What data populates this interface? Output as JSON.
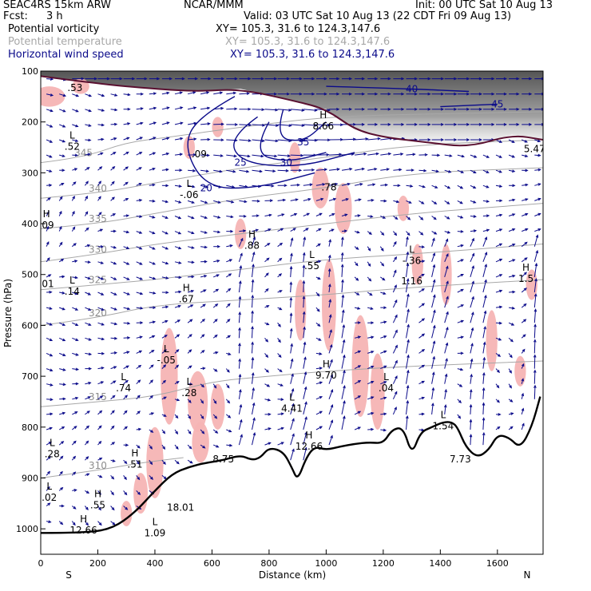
{
  "header": {
    "model": "SEAC4RS 15km ARW",
    "org": "NCAR/MMM",
    "init": "Init: 00 UTC Sat 10 Aug 13",
    "fcst_label": "Fcst:",
    "fcst_value": "3 h",
    "valid": "Valid: 03 UTC Sat 10 Aug 13 (22 CDT Fri 09 Aug 13)",
    "fields": [
      {
        "name": "Potential vorticity",
        "xy": "XY= 105.3, 31.6 to 124.3,147.6",
        "color": "#000000"
      },
      {
        "name": "Potential temperature",
        "xy": "XY= 105.3, 31.6 to 124.3,147.6",
        "color": "#a8a8a8"
      },
      {
        "name": "Horizontal wind speed",
        "xy": "XY= 105.3, 31.6 to 124.3,147.6",
        "color": "#0a0a8a"
      }
    ]
  },
  "chart_data": {
    "type": "cross-section",
    "xlabel": "Distance (km)",
    "ylabel": "Pressure (hPa)",
    "xlim": [
      0,
      1760
    ],
    "ylim": [
      1050,
      100
    ],
    "x_ticks": [
      0,
      200,
      400,
      600,
      800,
      1000,
      1200,
      1400,
      1600
    ],
    "y_ticks": [
      100,
      200,
      300,
      400,
      500,
      600,
      700,
      800,
      900,
      1000
    ],
    "left_end_label": "S",
    "right_end_label": "N",
    "colors": {
      "pv_shading": "#f6b4b4",
      "wind_contour": "#0a0a8a",
      "theta_contour": "#a8a8a8",
      "terrain": "#000000",
      "dynamic_tropopause": "#5a1030"
    },
    "terrain": [
      [
        0,
        1008
      ],
      [
        150,
        1008
      ],
      [
        250,
        1000
      ],
      [
        330,
        968
      ],
      [
        400,
        925
      ],
      [
        460,
        892
      ],
      [
        520,
        878
      ],
      [
        580,
        870
      ],
      [
        640,
        865
      ],
      [
        700,
        855
      ],
      [
        740,
        865
      ],
      [
        770,
        860
      ],
      [
        800,
        840
      ],
      [
        850,
        848
      ],
      [
        880,
        880
      ],
      [
        900,
        905
      ],
      [
        930,
        860
      ],
      [
        960,
        838
      ],
      [
        1000,
        845
      ],
      [
        1050,
        838
      ],
      [
        1100,
        833
      ],
      [
        1150,
        830
      ],
      [
        1200,
        832
      ],
      [
        1230,
        805
      ],
      [
        1270,
        800
      ],
      [
        1300,
        855
      ],
      [
        1330,
        810
      ],
      [
        1370,
        800
      ],
      [
        1410,
        790
      ],
      [
        1440,
        790
      ],
      [
        1460,
        800
      ],
      [
        1490,
        840
      ],
      [
        1530,
        860
      ],
      [
        1570,
        845
      ],
      [
        1600,
        815
      ],
      [
        1640,
        820
      ],
      [
        1680,
        842
      ],
      [
        1720,
        800
      ],
      [
        1750,
        740
      ]
    ],
    "theta_contours": [
      {
        "label": "345",
        "points": [
          [
            0,
            280
          ],
          [
            150,
            270
          ],
          [
            300,
            240
          ],
          [
            450,
            230
          ],
          [
            700,
            210
          ],
          [
            1000,
            190
          ],
          [
            1300,
            185
          ],
          [
            1760,
            180
          ]
        ]
      },
      {
        "label": "340",
        "points": [
          [
            0,
            350
          ],
          [
            200,
            340
          ],
          [
            400,
            320
          ],
          [
            700,
            290
          ],
          [
            1000,
            270
          ],
          [
            1300,
            245
          ],
          [
            1760,
            235
          ]
        ]
      },
      {
        "label": "335",
        "points": [
          [
            0,
            410
          ],
          [
            200,
            400
          ],
          [
            400,
            380
          ],
          [
            700,
            350
          ],
          [
            1000,
            330
          ],
          [
            1300,
            300
          ],
          [
            1760,
            290
          ]
        ]
      },
      {
        "label": "330",
        "points": [
          [
            0,
            475
          ],
          [
            200,
            460
          ],
          [
            400,
            440
          ],
          [
            700,
            420
          ],
          [
            1000,
            400
          ],
          [
            1300,
            380
          ],
          [
            1760,
            360
          ]
        ]
      },
      {
        "label": "325",
        "points": [
          [
            0,
            530
          ],
          [
            200,
            520
          ],
          [
            400,
            510
          ],
          [
            700,
            490
          ],
          [
            1000,
            470
          ],
          [
            1300,
            460
          ],
          [
            1760,
            440
          ]
        ]
      },
      {
        "label": "320",
        "points": [
          [
            0,
            600
          ],
          [
            200,
            585
          ],
          [
            400,
            560
          ],
          [
            700,
            550
          ],
          [
            1000,
            540
          ],
          [
            1300,
            525
          ],
          [
            1760,
            510
          ]
        ]
      },
      {
        "label": "315",
        "points": [
          [
            0,
            760
          ],
          [
            200,
            750
          ],
          [
            400,
            740
          ],
          [
            600,
            710
          ],
          [
            800,
            700
          ],
          [
            1000,
            690
          ],
          [
            1300,
            680
          ],
          [
            1760,
            670
          ]
        ]
      },
      {
        "label": "310",
        "points": [
          [
            0,
            900
          ],
          [
            200,
            885
          ],
          [
            350,
            870
          ],
          [
            500,
            860
          ]
        ]
      }
    ],
    "wind_contours": [
      {
        "label": "20",
        "points": [
          [
            680,
            150
          ],
          [
            550,
            190
          ],
          [
            500,
            250
          ],
          [
            580,
            330
          ],
          [
            760,
            330
          ],
          [
            960,
            300
          ]
        ]
      },
      {
        "label": "25",
        "points": [
          [
            760,
            190
          ],
          [
            660,
            230
          ],
          [
            700,
            280
          ],
          [
            900,
            290
          ],
          [
            1100,
            260
          ]
        ]
      },
      {
        "label": "30",
        "points": [
          [
            800,
            200
          ],
          [
            740,
            260
          ],
          [
            860,
            280
          ],
          [
            1000,
            260
          ]
        ]
      },
      {
        "label": "35",
        "points": [
          [
            850,
            175
          ],
          [
            820,
            230
          ],
          [
            920,
            240
          ],
          [
            1000,
            200
          ]
        ]
      },
      {
        "label": "40",
        "points": [
          [
            1000,
            130
          ],
          [
            1300,
            135
          ],
          [
            1500,
            140
          ]
        ]
      },
      {
        "label": "45",
        "points": [
          [
            1400,
            170
          ],
          [
            1600,
            165
          ]
        ]
      }
    ],
    "dynamic_tropopause": [
      [
        0,
        110
      ],
      [
        200,
        125
      ],
      [
        400,
        135
      ],
      [
        550,
        140
      ],
      [
        700,
        135
      ],
      [
        900,
        160
      ],
      [
        1000,
        175
      ],
      [
        1100,
        215
      ],
      [
        1200,
        230
      ],
      [
        1350,
        240
      ],
      [
        1500,
        250
      ],
      [
        1650,
        225
      ],
      [
        1760,
        235
      ]
    ],
    "pv_regions": [
      [
        30,
        150,
        110,
        40
      ],
      [
        140,
        130,
        60,
        30
      ],
      [
        520,
        250,
        40,
        45
      ],
      [
        620,
        210,
        40,
        40
      ],
      [
        890,
        270,
        40,
        60
      ],
      [
        980,
        330,
        60,
        80
      ],
      [
        1060,
        370,
        60,
        100
      ],
      [
        1270,
        370,
        40,
        50
      ],
      [
        700,
        420,
        40,
        60
      ],
      [
        1420,
        500,
        40,
        120
      ],
      [
        1320,
        480,
        40,
        80
      ],
      [
        910,
        570,
        40,
        120
      ],
      [
        1010,
        560,
        50,
        180
      ],
      [
        1120,
        680,
        60,
        200
      ],
      [
        1180,
        730,
        50,
        150
      ],
      [
        1580,
        630,
        40,
        120
      ],
      [
        1720,
        520,
        40,
        60
      ],
      [
        1680,
        690,
        40,
        60
      ],
      [
        450,
        700,
        60,
        190
      ],
      [
        550,
        750,
        70,
        120
      ],
      [
        620,
        760,
        50,
        90
      ],
      [
        560,
        830,
        60,
        80
      ],
      [
        400,
        870,
        60,
        140
      ],
      [
        350,
        930,
        50,
        80
      ],
      [
        300,
        970,
        40,
        50
      ]
    ],
    "pv_extrema": [
      {
        "kind": "",
        "value": ".53",
        "x": 120,
        "y": 130
      },
      {
        "kind": "L",
        "value": ".52",
        "x": 110,
        "y": 245
      },
      {
        "kind": "",
        "value": ".09",
        "x": 555,
        "y": 260
      },
      {
        "kind": "L",
        "value": "-.06",
        "x": 520,
        "y": 340
      },
      {
        "kind": "H",
        "value": ".09",
        "x": 20,
        "y": 400
      },
      {
        "kind": "H",
        "value": ".88",
        "x": 740,
        "y": 440
      },
      {
        "kind": "L",
        "value": ".55",
        "x": 950,
        "y": 480
      },
      {
        "kind": "",
        "value": ".01",
        "x": 20,
        "y": 515
      },
      {
        "kind": "L",
        "value": ".14",
        "x": 110,
        "y": 530
      },
      {
        "kind": "H",
        "value": ".67",
        "x": 510,
        "y": 545
      },
      {
        "kind": "L",
        "value": "-.36",
        "x": 1300,
        "y": 470
      },
      {
        "kind": "",
        "value": "1.16",
        "x": 1300,
        "y": 510
      },
      {
        "kind": "H",
        "value": "1.5",
        "x": 1700,
        "y": 505
      },
      {
        "kind": "L",
        "value": "-.05",
        "x": 440,
        "y": 665
      },
      {
        "kind": "L",
        "value": ".74",
        "x": 290,
        "y": 720
      },
      {
        "kind": "L",
        "value": ".28",
        "x": 520,
        "y": 730
      },
      {
        "kind": "H",
        "value": "9.70",
        "x": 1000,
        "y": 695
      },
      {
        "kind": "L",
        "value": ".04",
        "x": 1210,
        "y": 720
      },
      {
        "kind": "L",
        "value": "4.41",
        "x": 880,
        "y": 760
      },
      {
        "kind": "H",
        "value": "12.66",
        "x": 940,
        "y": 835
      },
      {
        "kind": "L",
        "value": ".28",
        "x": 40,
        "y": 850
      },
      {
        "kind": "H",
        "value": ".51",
        "x": 330,
        "y": 870
      },
      {
        "kind": "",
        "value": "8.75",
        "x": 640,
        "y": 860
      },
      {
        "kind": "L",
        "value": ".02",
        "x": 30,
        "y": 935
      },
      {
        "kind": "H",
        "value": ".55",
        "x": 200,
        "y": 950
      },
      {
        "kind": "",
        "value": "18.01",
        "x": 490,
        "y": 955
      },
      {
        "kind": "H",
        "value": "12.66",
        "x": 150,
        "y": 1000
      },
      {
        "kind": "L",
        "value": "1.09",
        "x": 400,
        "y": 1005
      },
      {
        "kind": "L",
        "value": "1.54",
        "x": 1410,
        "y": 795
      },
      {
        "kind": "",
        "value": "7.73",
        "x": 1470,
        "y": 860
      },
      {
        "kind": "H",
        "value": "8.66",
        "x": 990,
        "y": 205
      },
      {
        "kind": "",
        "value": "5.47",
        "x": 1730,
        "y": 250
      },
      {
        "kind": "",
        "value": ".78",
        "x": 1010,
        "y": 325
      }
    ],
    "wind_field": {
      "x_spacing_km": 45,
      "p_spacing_hpa": 30,
      "jet_core_x": 950,
      "jet_core_p": 200,
      "updrafts_x": [
        720,
        900,
        1040,
        1270,
        1390,
        1530,
        1730
      ]
    }
  }
}
